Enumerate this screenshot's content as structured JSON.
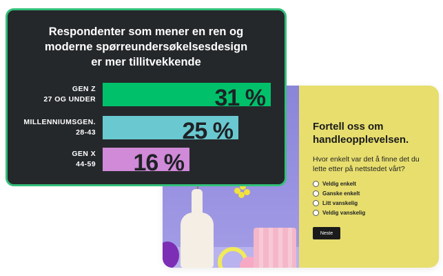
{
  "results": {
    "title_lines": [
      "Respondenter som mener en ren og",
      "moderne spørreundersøkelsesdesign",
      "er mer tillitvekkende"
    ],
    "rows": [
      {
        "label_line1": "GEN Z",
        "label_line2": "27 OG UNDER",
        "value": 31,
        "value_text": "31 %",
        "color": "#00c16a"
      },
      {
        "label_line1": "MILLENNIUMSGEN.",
        "label_line2": "28-43",
        "value": 25,
        "value_text": "25 %",
        "color": "#6ac9d0"
      },
      {
        "label_line1": "GEN X",
        "label_line2": "44-59",
        "value": 16,
        "value_text": "16 %",
        "color": "#d08ad8"
      }
    ],
    "border_color": "#33c07a",
    "background": "#25282b"
  },
  "survey": {
    "title": "Fortell oss om handleopplevelsen.",
    "question": "Hvor enkelt var det å finne det du lette etter på nettstedet vårt?",
    "options": [
      "Veldig enkelt",
      "Ganske enkelt",
      "Litt vanskelig",
      "Veldig vanskelig"
    ],
    "next_label": "Neste",
    "panel_color": "#e7de6e"
  },
  "chart_data": {
    "type": "bar",
    "title": "Respondenter som mener en ren og moderne spørreundersøkelsesdesign er mer tillitvekkende",
    "categories": [
      "GEN Z 27 OG UNDER",
      "MILLENNIUMSGEN. 28-43",
      "GEN X 44-59"
    ],
    "values": [
      31,
      25,
      16
    ],
    "unit": "%"
  }
}
